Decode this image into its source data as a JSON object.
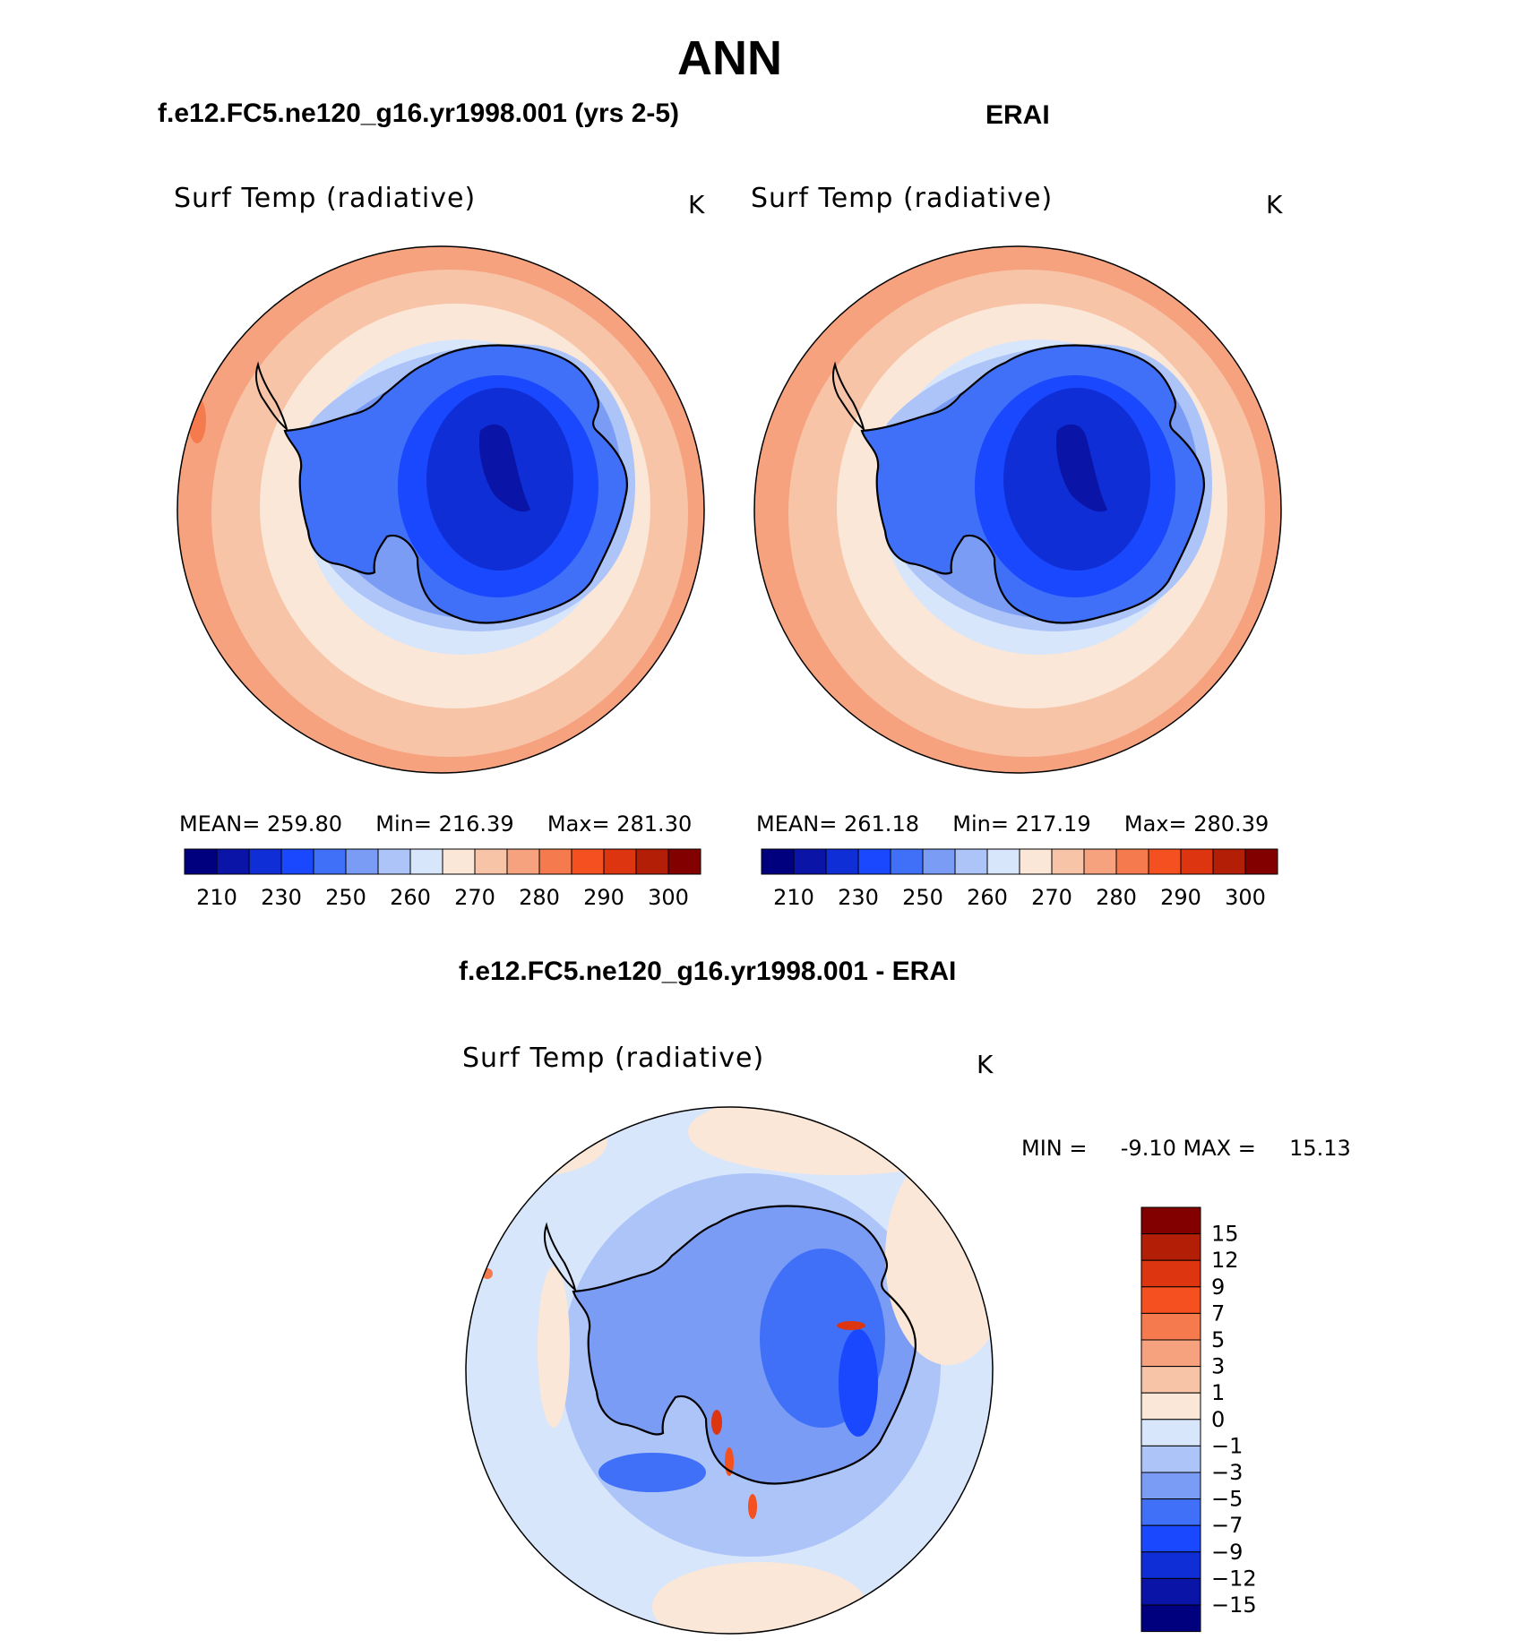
{
  "figure_title": "ANN",
  "panels": {
    "left": {
      "header": "f.e12.FC5.ne120_g16.yr1998.001 (yrs 2-5)",
      "variable": "Surf Temp (radiative)",
      "units": "K",
      "stats": {
        "mean_label": "MEAN=",
        "mean": "259.80",
        "min_label": "Min=",
        "min": "216.39",
        "max_label": "Max=",
        "max": "281.30"
      }
    },
    "right": {
      "header": "ERAI",
      "variable": "Surf Temp (radiative)",
      "units": "K",
      "stats": {
        "mean_label": "MEAN=",
        "mean": "261.18",
        "min_label": "Min=",
        "min": "217.19",
        "max_label": "Max=",
        "max": "280.39"
      }
    },
    "diff": {
      "header": "f.e12.FC5.ne120_g16.yr1998.001 - ERAI",
      "variable": "Surf Temp (radiative)",
      "units": "K",
      "stats": {
        "min_label": "MIN =",
        "min": "-9.10",
        "max_label": "MAX =",
        "max": "15.13"
      }
    }
  },
  "chart_data": [
    {
      "type": "heatmap",
      "projection": "south polar stereographic",
      "title": "f.e12.FC5.ne120_g16.yr1998.001 (yrs 2-5)",
      "variable": "Surf Temp (radiative)",
      "units": "K",
      "mean": 259.8,
      "min": 216.39,
      "max": 281.3,
      "colorbar_ticks": [
        "210",
        "230",
        "250",
        "260",
        "270",
        "280",
        "290",
        "300"
      ],
      "colorbar_colors": [
        "#00007f",
        "#0a14a6",
        "#0f2ed6",
        "#1a48ff",
        "#4070f8",
        "#7a9cf5",
        "#adc4f9",
        "#d8e6fc",
        "#fbe7d7",
        "#f8c4a8",
        "#f6a27e",
        "#f57a4d",
        "#f5501f",
        "#dc3510",
        "#b21f06",
        "#820000"
      ]
    },
    {
      "type": "heatmap",
      "projection": "south polar stereographic",
      "title": "ERAI",
      "variable": "Surf Temp (radiative)",
      "units": "K",
      "mean": 261.18,
      "min": 217.19,
      "max": 280.39,
      "colorbar_ticks": [
        "210",
        "230",
        "250",
        "260",
        "270",
        "280",
        "290",
        "300"
      ],
      "colorbar_colors": [
        "#00007f",
        "#0a14a6",
        "#0f2ed6",
        "#1a48ff",
        "#4070f8",
        "#7a9cf5",
        "#adc4f9",
        "#d8e6fc",
        "#fbe7d7",
        "#f8c4a8",
        "#f6a27e",
        "#f57a4d",
        "#f5501f",
        "#dc3510",
        "#b21f06",
        "#820000"
      ]
    },
    {
      "type": "heatmap",
      "projection": "south polar stereographic",
      "title": "f.e12.FC5.ne120_g16.yr1998.001 - ERAI",
      "variable": "Surf Temp (radiative)",
      "units": "K",
      "min": -9.1,
      "max": 15.13,
      "colorbar_ticks": [
        "15",
        "12",
        "9",
        "7",
        "5",
        "3",
        "1",
        "0",
        "−1",
        "−3",
        "−5",
        "−7",
        "−9",
        "−12",
        "−15"
      ],
      "colorbar_colors": [
        "#820000",
        "#b21f06",
        "#dc3510",
        "#f5501f",
        "#f57a4d",
        "#f6a27e",
        "#f8c4a8",
        "#fbe7d7",
        "#d8e6fc",
        "#adc4f9",
        "#7a9cf5",
        "#4070f8",
        "#1a48ff",
        "#0f2ed6",
        "#0a14a6",
        "#00007f"
      ]
    }
  ]
}
